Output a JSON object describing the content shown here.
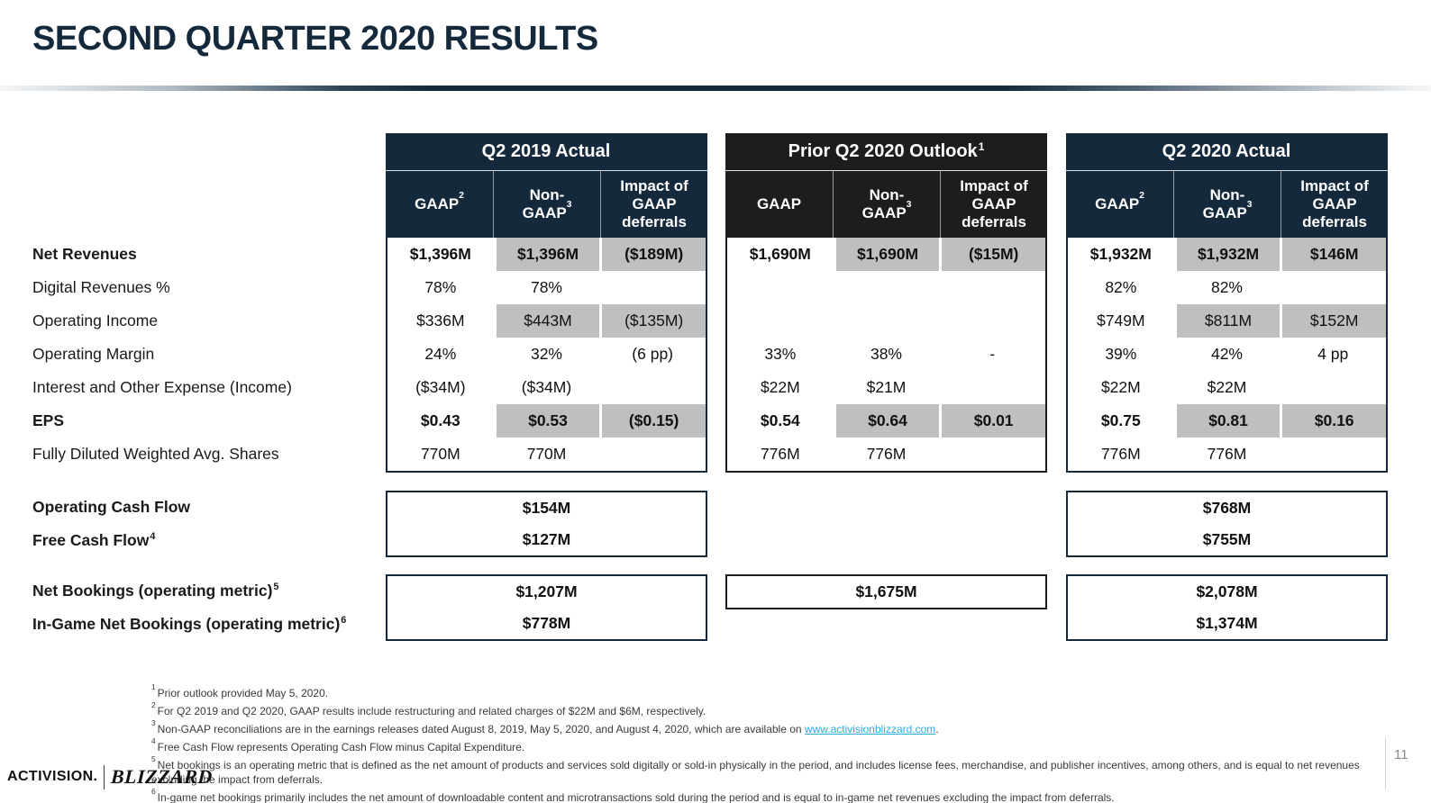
{
  "title": "SECOND QUARTER 2020 RESULTS",
  "page_number": "11",
  "logo": {
    "activision": "ACTIVISION.",
    "blizzard": "BLIZZARD"
  },
  "colors": {
    "navy_header": "#15293c",
    "black_header": "#1d1d1d",
    "gray_band": "#bfbfbf",
    "link": "#29abe2"
  },
  "row_labels": [
    {
      "label": "Net Revenues",
      "sup": ""
    },
    {
      "label": "Digital Revenues %",
      "sup": ""
    },
    {
      "label": "Operating Income",
      "sup": ""
    },
    {
      "label": "Operating Margin",
      "sup": ""
    },
    {
      "label": "Interest and Other Expense (Income)",
      "sup": ""
    },
    {
      "label": "EPS",
      "sup": ""
    },
    {
      "label": "Fully Diluted Weighted Avg. Shares",
      "sup": ""
    }
  ],
  "cashflow_labels": [
    {
      "label": "Operating Cash Flow",
      "sup": ""
    },
    {
      "label": "Free Cash Flow",
      "sup": "4"
    }
  ],
  "bookings_labels": [
    {
      "label": "Net Bookings (operating metric)",
      "sup": "5"
    },
    {
      "label": "In-Game Net Bookings (operating metric)",
      "sup": "6"
    }
  ],
  "tables": [
    {
      "title": "Q2 2019 Actual",
      "title_sup": "",
      "columns": [
        {
          "label": "GAAP",
          "sup": "2"
        },
        {
          "label": "Non-GAAP",
          "sup": "3"
        },
        {
          "label": "Impact of GAAP deferrals",
          "sup": ""
        }
      ],
      "rows": [
        [
          "$1,396M",
          "$1,396M",
          "($189M)"
        ],
        [
          "78%",
          "78%",
          ""
        ],
        [
          "$336M",
          "$443M",
          "($135M)"
        ],
        [
          "24%",
          "32%",
          "(6 pp)"
        ],
        [
          "($34M)",
          "($34M)",
          ""
        ],
        [
          "$0.43",
          "$0.53",
          "($0.15)"
        ],
        [
          "770M",
          "770M",
          ""
        ]
      ],
      "cash_flow": [
        "$154M",
        "$127M"
      ],
      "bookings": [
        "$1,207M",
        "$778M"
      ]
    },
    {
      "title": "Prior Q2 2020 Outlook",
      "title_sup": "1",
      "columns": [
        {
          "label": "GAAP",
          "sup": ""
        },
        {
          "label": "Non-GAAP",
          "sup": "3"
        },
        {
          "label": "Impact of GAAP deferrals",
          "sup": ""
        }
      ],
      "rows": [
        [
          "$1,690M",
          "$1,690M",
          "($15M)"
        ],
        [
          "",
          "",
          ""
        ],
        [
          "",
          "",
          ""
        ],
        [
          "33%",
          "38%",
          "-"
        ],
        [
          "$22M",
          "$21M",
          ""
        ],
        [
          "$0.54",
          "$0.64",
          "$0.01"
        ],
        [
          "776M",
          "776M",
          ""
        ]
      ],
      "cash_flow": [],
      "bookings": [
        "$1,675M"
      ]
    },
    {
      "title": "Q2 2020 Actual",
      "title_sup": "",
      "columns": [
        {
          "label": "GAAP",
          "sup": "2"
        },
        {
          "label": "Non-GAAP",
          "sup": "3"
        },
        {
          "label": "Impact of GAAP deferrals",
          "sup": ""
        }
      ],
      "rows": [
        [
          "$1,932M",
          "$1,932M",
          "$146M"
        ],
        [
          "82%",
          "82%",
          ""
        ],
        [
          "$749M",
          "$811M",
          "$152M"
        ],
        [
          "39%",
          "42%",
          "4 pp"
        ],
        [
          "$22M",
          "$22M",
          ""
        ],
        [
          "$0.75",
          "$0.81",
          "$0.16"
        ],
        [
          "776M",
          "776M",
          ""
        ]
      ],
      "cash_flow": [
        "$768M",
        "$755M"
      ],
      "bookings": [
        "$2,078M",
        "$1,374M"
      ]
    }
  ],
  "footnotes": [
    {
      "sup": "1",
      "text": "Prior outlook provided May 5, 2020."
    },
    {
      "sup": "2",
      "text": "For Q2 2019 and Q2 2020, GAAP results include restructuring and related charges of $22M and $6M, respectively."
    },
    {
      "sup": "3",
      "text": "Non-GAAP reconciliations are in the earnings releases dated August 8, 2019, May 5, 2020, and August 4, 2020, which are available on ",
      "link": "www.activisionblizzard.com",
      "text2": "."
    },
    {
      "sup": "4",
      "text": "Free Cash Flow represents Operating Cash Flow minus Capital Expenditure."
    },
    {
      "sup": "5",
      "text": "Net bookings is an operating metric that is defined as the net amount of products and services sold digitally or sold-in physically in the period, and includes license fees, merchandise, and publisher incentives, among others, and is equal to net revenues excluding the impact from deferrals."
    },
    {
      "sup": "6",
      "text": "In-game net bookings primarily includes the net amount of downloadable content and microtransactions sold during the period and is equal to in-game net revenues excluding the impact from deferrals."
    }
  ]
}
